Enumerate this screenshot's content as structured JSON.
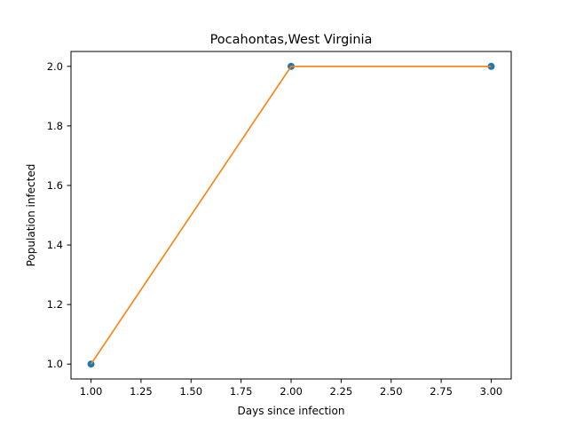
{
  "chart_data": {
    "type": "line",
    "title": "Pocahontas,West Virginia",
    "xlabel": "Days since infection",
    "ylabel": "Population infected",
    "x": [
      1,
      2,
      3
    ],
    "series": [
      {
        "values": [
          1,
          2,
          2
        ]
      }
    ],
    "xlim": [
      0.9,
      3.1
    ],
    "ylim": [
      0.95,
      2.05
    ],
    "xticks": [
      "1.00",
      "1.25",
      "1.50",
      "1.75",
      "2.00",
      "2.25",
      "2.50",
      "2.75",
      "3.00"
    ],
    "yticks": [
      "1.0",
      "1.2",
      "1.4",
      "1.6",
      "1.8",
      "2.0"
    ],
    "grid": false,
    "legend": "none",
    "colors": {
      "points": "#1f77b4",
      "line": "#ff7f0e",
      "axes": "#000000"
    }
  }
}
